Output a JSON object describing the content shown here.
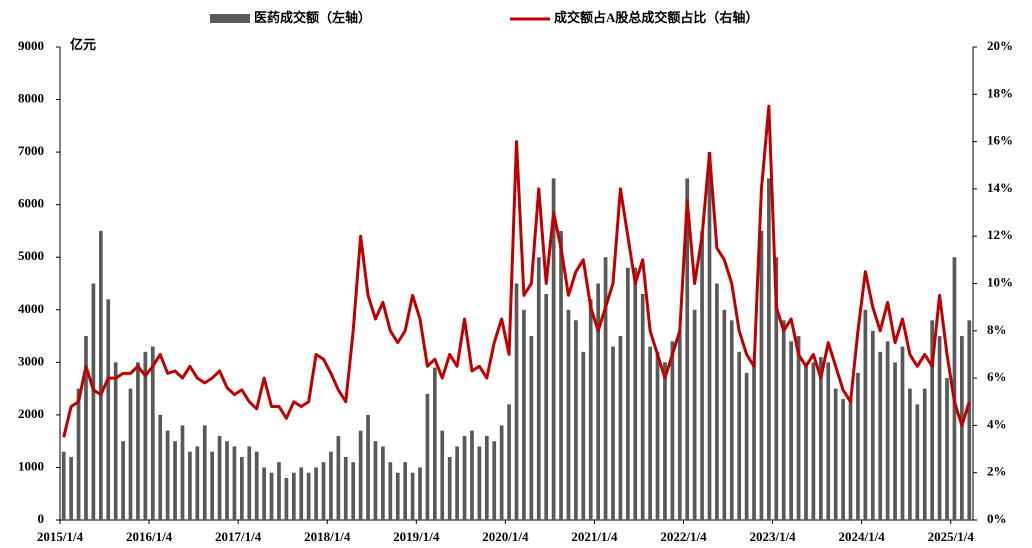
{
  "chart_data": {
    "type": "bar-line",
    "unit_label": "亿元",
    "categories": [
      "2015/1/4",
      null,
      null,
      null,
      null,
      null,
      null,
      null,
      null,
      null,
      null,
      null,
      "2016/1/4",
      null,
      null,
      null,
      null,
      null,
      null,
      null,
      null,
      null,
      null,
      null,
      "2017/1/4",
      null,
      null,
      null,
      null,
      null,
      null,
      null,
      null,
      null,
      null,
      null,
      "2018/1/4",
      null,
      null,
      null,
      null,
      null,
      null,
      null,
      null,
      null,
      null,
      null,
      "2019/1/4",
      null,
      null,
      null,
      null,
      null,
      null,
      null,
      null,
      null,
      null,
      null,
      "2020/1/4",
      null,
      null,
      null,
      null,
      null,
      null,
      null,
      null,
      null,
      null,
      null,
      "2021/1/4",
      null,
      null,
      null,
      null,
      null,
      null,
      null,
      null,
      null,
      null,
      null,
      "2022/1/4",
      null,
      null,
      null,
      null,
      null,
      null,
      null,
      null,
      null,
      null,
      null,
      "2023/1/4",
      null,
      null,
      null,
      null,
      null,
      null,
      null,
      null,
      null,
      null,
      null,
      "2024/1/4",
      null,
      null,
      null,
      null,
      null,
      null,
      null,
      null,
      null,
      null,
      null,
      "2025/1/4",
      null,
      null
    ],
    "series": [
      {
        "name": "医药成交额（左轴）",
        "type": "bar",
        "color": "#595959",
        "values": [
          1300,
          1200,
          2500,
          3500,
          4500,
          5500,
          4200,
          3000,
          1500,
          2500,
          3000,
          3200,
          3300,
          2000,
          1700,
          1500,
          1800,
          1300,
          1400,
          1800,
          1300,
          1600,
          1500,
          1400,
          1200,
          1400,
          1300,
          1000,
          900,
          1100,
          800,
          900,
          1000,
          900,
          1000,
          1100,
          1300,
          1600,
          1200,
          1100,
          1700,
          2000,
          1500,
          1400,
          1100,
          900,
          1100,
          900,
          1000,
          2400,
          2900,
          1700,
          1200,
          1400,
          1600,
          1700,
          1400,
          1600,
          1500,
          1800,
          2200,
          4500,
          4000,
          3500,
          5000,
          4300,
          6500,
          5500,
          4000,
          3800,
          3200,
          4200,
          4500,
          5000,
          3300,
          3500,
          4800,
          4800,
          4300,
          3300,
          3200,
          3000,
          3400,
          3600,
          6500,
          4000,
          5500,
          7000,
          4500,
          4000,
          3800,
          3200,
          2800,
          3000,
          5500,
          6500,
          5000,
          3800,
          3400,
          3500,
          3000,
          3000,
          3100,
          3000,
          2500,
          2300,
          2300,
          2800,
          4000,
          3600,
          3200,
          3400,
          3000,
          3300,
          2500,
          2200,
          2500,
          3800,
          3500,
          2700,
          5000,
          3500,
          3800
        ]
      },
      {
        "name": "成交额占A股总成交额占比（右轴）",
        "type": "line",
        "axis": "y2",
        "color": "#c00000",
        "values": [
          3.5,
          4.8,
          5.0,
          6.5,
          5.5,
          5.3,
          6.0,
          6.0,
          6.2,
          6.2,
          6.5,
          6.1,
          6.5,
          7.0,
          6.2,
          6.3,
          6.0,
          6.5,
          6.0,
          5.8,
          6.0,
          6.3,
          5.6,
          5.3,
          5.5,
          5.0,
          4.7,
          6.0,
          4.8,
          4.8,
          4.3,
          5.0,
          4.8,
          5.0,
          7.0,
          6.8,
          6.2,
          5.5,
          5.0,
          8.0,
          12.0,
          9.5,
          8.5,
          9.2,
          8.0,
          7.5,
          8.0,
          9.5,
          8.5,
          6.5,
          6.8,
          6.0,
          7.0,
          6.5,
          8.5,
          6.3,
          6.5,
          6.0,
          7.5,
          8.5,
          7.0,
          16.0,
          9.5,
          10.0,
          14.0,
          10.0,
          13.0,
          11.5,
          9.5,
          10.5,
          11.0,
          9.0,
          8.0,
          9.0,
          10.0,
          14.0,
          12.0,
          10.0,
          11.0,
          8.0,
          7.0,
          6.0,
          7.0,
          8.0,
          13.5,
          10.0,
          12.0,
          15.5,
          11.5,
          11.0,
          10.0,
          8.0,
          7.0,
          6.5,
          14.0,
          17.5,
          9.0,
          8.0,
          8.5,
          7.0,
          6.5,
          7.0,
          6.0,
          7.5,
          6.5,
          5.5,
          5.0,
          8.0,
          10.5,
          9.0,
          8.0,
          9.2,
          7.5,
          8.5,
          7.0,
          6.5,
          7.0,
          6.5,
          9.5,
          7.0,
          5.0,
          4.0,
          5.0
        ]
      }
    ],
    "ylim": [
      0,
      9000
    ],
    "yticks": [
      0,
      1000,
      2000,
      3000,
      4000,
      5000,
      6000,
      7000,
      8000,
      9000
    ],
    "y2lim": [
      0,
      20
    ],
    "y2ticks": [
      {
        "value": 0,
        "label": "0%"
      },
      {
        "value": 2,
        "label": "2%"
      },
      {
        "value": 4,
        "label": "4%"
      },
      {
        "value": 6,
        "label": "6%"
      },
      {
        "value": 8,
        "label": "8%"
      },
      {
        "value": 10,
        "label": "10%"
      },
      {
        "value": 12,
        "label": "12%"
      },
      {
        "value": 14,
        "label": "14%"
      },
      {
        "value": 16,
        "label": "16%"
      },
      {
        "value": 18,
        "label": "18%"
      },
      {
        "value": 20,
        "label": "20%"
      }
    ],
    "grid": false
  }
}
